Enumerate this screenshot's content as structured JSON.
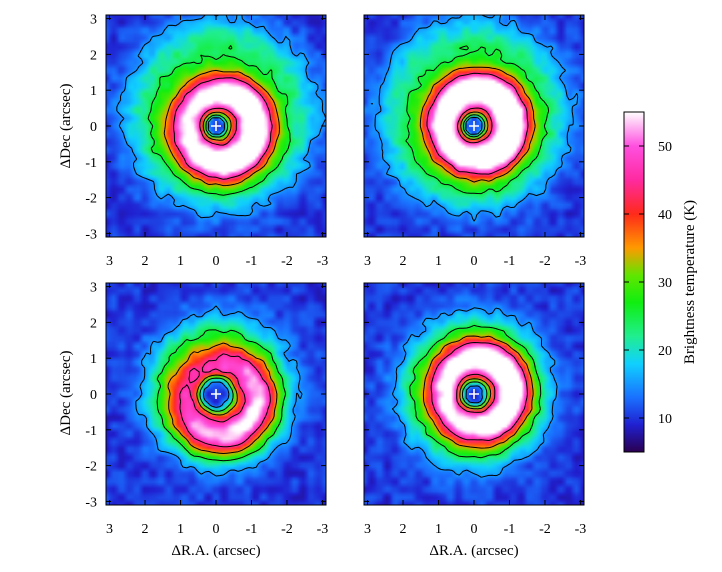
{
  "chart_data": {
    "type": "heatmap",
    "x_axis": {
      "label": "ΔR.A. (arcsec)",
      "ticks": [
        3,
        2,
        1,
        0,
        -1,
        -2,
        -3
      ],
      "tick_labels": [
        "3",
        "2",
        "1",
        "0",
        "-1",
        "-2",
        "-3"
      ],
      "range": [
        3.1,
        -3.1
      ]
    },
    "y_axis": {
      "label": "ΔDec (arcsec)",
      "ticks": [
        3,
        2,
        1,
        0,
        -1,
        -2,
        -3
      ],
      "tick_labels": [
        "3",
        "2",
        "1",
        "0",
        "-1",
        "-2",
        "-3"
      ],
      "range": [
        -3.1,
        3.1
      ]
    },
    "colorbar": {
      "label": "Brightness temperature (K)",
      "range": [
        5,
        55
      ],
      "ticks": [
        10,
        20,
        30,
        40,
        50
      ],
      "tick_labels": [
        "10",
        "20",
        "30",
        "40",
        "50"
      ],
      "colormap": [
        [
          5,
          "#2a0050"
        ],
        [
          9,
          "#2020d0"
        ],
        [
          13,
          "#1a70ff"
        ],
        [
          18,
          "#10d0ff"
        ],
        [
          22,
          "#20ee90"
        ],
        [
          27,
          "#10ee10"
        ],
        [
          31,
          "#60e600"
        ],
        [
          35,
          "#ff9a00"
        ],
        [
          40,
          "#ff2a1a"
        ],
        [
          45,
          "#ff2aa0"
        ],
        [
          50,
          "#ff50e0"
        ],
        [
          55,
          "#ffffff"
        ]
      ]
    },
    "marker": {
      "symbol": "+",
      "x": 0,
      "y": 0
    },
    "panels": [
      {
        "id": "top-left",
        "model": {
          "ring_radius": 1.0,
          "inner_radius": 0.3,
          "peak_temp": 51,
          "halo_radius": 2.6,
          "background": 10,
          "asym_angle_deg": 200,
          "asym_strength": 0.18,
          "halo_offset": [
            -0.1,
            0.3
          ]
        }
      },
      {
        "id": "top-right",
        "model": {
          "ring_radius": 1.0,
          "inner_radius": 0.3,
          "peak_temp": 54,
          "halo_radius": 2.6,
          "background": 10,
          "asym_angle_deg": 150,
          "asym_strength": 0.12,
          "halo_offset": [
            0.0,
            0.3
          ]
        }
      },
      {
        "id": "bottom-left",
        "model": {
          "ring_radius": 1.05,
          "inner_radius": 0.45,
          "peak_temp": 41,
          "halo_radius": 2.0,
          "background": 10,
          "asym_angle_deg": 225,
          "asym_strength": 0.25,
          "halo_offset": [
            -0.1,
            0.1
          ]
        }
      },
      {
        "id": "bottom-right",
        "model": {
          "ring_radius": 1.0,
          "inner_radius": 0.35,
          "peak_temp": 50,
          "halo_radius": 2.1,
          "background": 10,
          "asym_angle_deg": 160,
          "asym_strength": 0.15,
          "halo_offset": [
            0.0,
            0.1
          ]
        }
      }
    ]
  }
}
